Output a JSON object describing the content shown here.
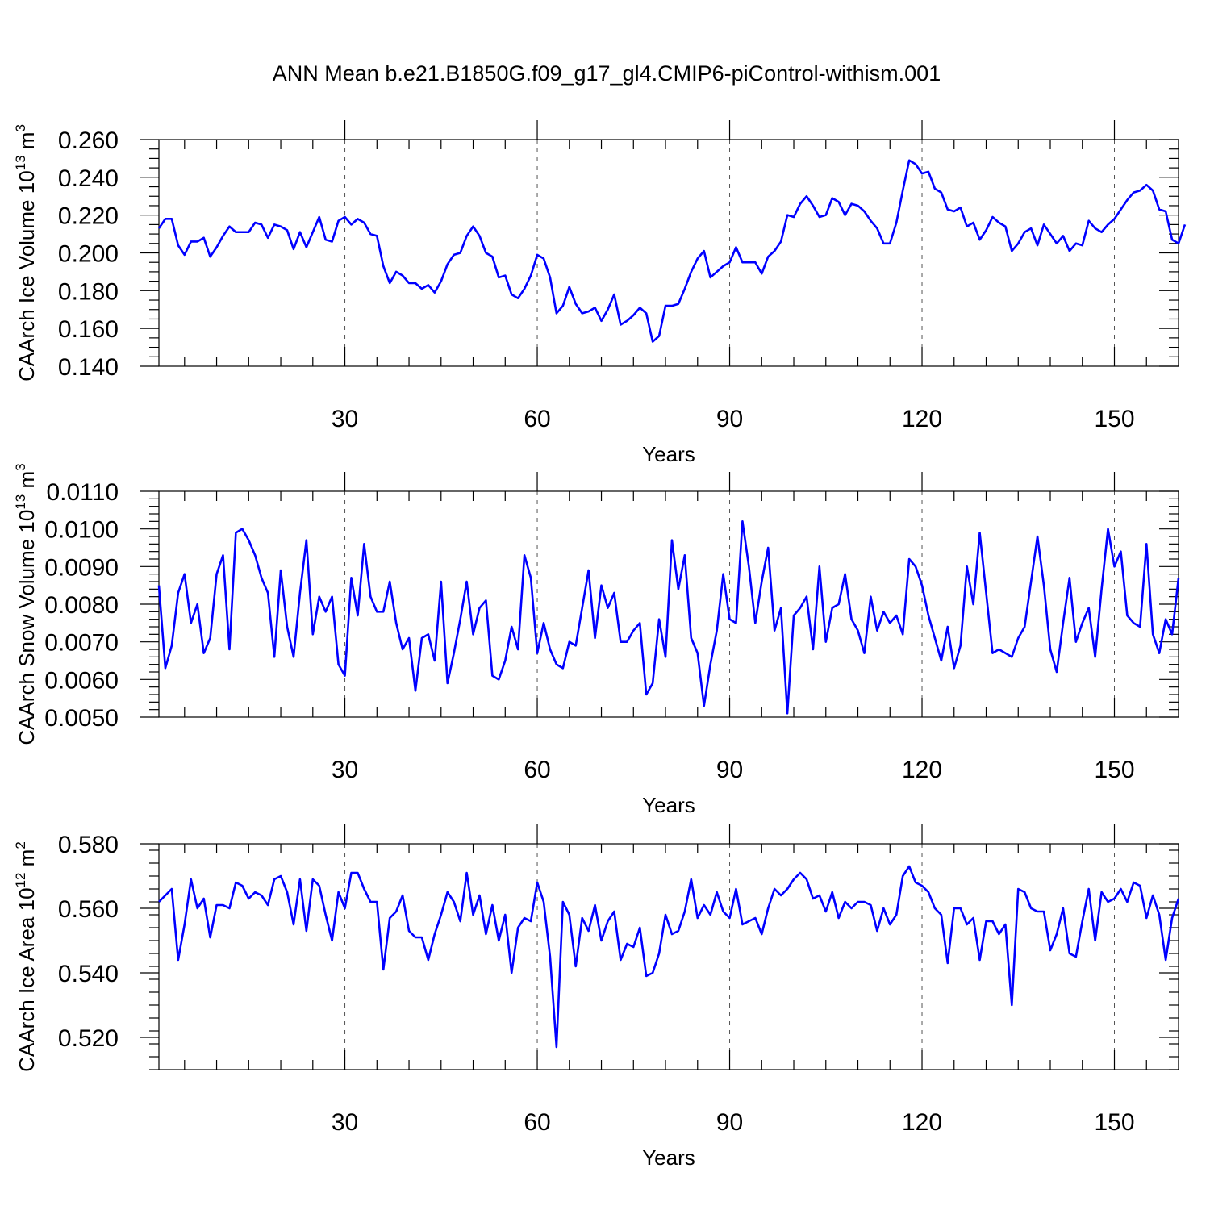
{
  "figure_title": "ANN Mean b.e21.B1850G.f09_g17_gl4.CMIP6-piControl-withism.001",
  "line_color": "#0000ff",
  "chart_data": [
    {
      "type": "line",
      "ylabel_main": "CAArch Ice Volume 10",
      "ylabel_exp": "13",
      "ylabel_unit": "m",
      "ylabel_unit_exp": "3",
      "xlabel": "Years",
      "xlim": [
        1,
        160
      ],
      "ylim": [
        0.14,
        0.26
      ],
      "x_ticks": [
        30,
        60,
        90,
        120,
        150
      ],
      "x_tick_labels": [
        "30",
        "60",
        "90",
        "120",
        "150"
      ],
      "y_ticks": [
        0.14,
        0.16,
        0.18,
        0.2,
        0.22,
        0.24,
        0.26
      ],
      "y_tick_labels": [
        "0.140",
        "0.160",
        "0.180",
        "0.200",
        "0.220",
        "0.240",
        "0.260"
      ],
      "y_minor_step": 0.005,
      "x_minor_step": 5,
      "grid": "dashed vertical at major x ticks",
      "series": [
        {
          "name": "CAArch Ice Volume",
          "values": [
            0.213,
            0.218,
            0.218,
            0.204,
            0.199,
            0.206,
            0.206,
            0.208,
            0.198,
            0.203,
            0.209,
            0.214,
            0.211,
            0.211,
            0.211,
            0.216,
            0.215,
            0.208,
            0.215,
            0.214,
            0.212,
            0.202,
            0.211,
            0.203,
            0.211,
            0.219,
            0.207,
            0.206,
            0.217,
            0.219,
            0.215,
            0.218,
            0.216,
            0.21,
            0.209,
            0.193,
            0.184,
            0.19,
            0.188,
            0.184,
            0.184,
            0.181,
            0.183,
            0.179,
            0.185,
            0.194,
            0.199,
            0.2,
            0.209,
            0.214,
            0.209,
            0.2,
            0.198,
            0.187,
            0.188,
            0.178,
            0.176,
            0.181,
            0.188,
            0.199,
            0.197,
            0.187,
            0.168,
            0.172,
            0.182,
            0.173,
            0.168,
            0.169,
            0.171,
            0.164,
            0.17,
            0.178,
            0.162,
            0.164,
            0.167,
            0.171,
            0.168,
            0.153,
            0.156,
            0.172,
            0.172,
            0.173,
            0.181,
            0.19,
            0.197,
            0.201,
            0.187,
            0.19,
            0.193,
            0.195,
            0.203,
            0.195,
            0.195,
            0.195,
            0.189,
            0.198,
            0.201,
            0.206,
            0.22,
            0.219,
            0.226,
            0.23,
            0.225,
            0.219,
            0.22,
            0.229,
            0.227,
            0.22,
            0.226,
            0.225,
            0.222,
            0.217,
            0.213,
            0.205,
            0.205,
            0.216,
            0.233,
            0.249,
            0.247,
            0.242,
            0.243,
            0.234,
            0.232,
            0.223,
            0.222,
            0.224,
            0.214,
            0.216,
            0.207,
            0.212,
            0.219,
            0.216,
            0.214,
            0.201,
            0.205,
            0.211,
            0.213,
            0.204,
            0.215,
            0.21,
            0.205,
            0.209,
            0.201,
            0.205,
            0.204,
            0.217,
            0.213,
            0.211,
            0.215,
            0.218,
            0.223,
            0.228,
            0.232,
            0.233,
            0.236,
            0.233,
            0.223,
            0.222,
            0.207,
            0.205,
            0.215
          ]
        }
      ]
    },
    {
      "type": "line",
      "ylabel_main": "CAArch Snow Volume 10",
      "ylabel_exp": "13",
      "ylabel_unit": "m",
      "ylabel_unit_exp": "3",
      "xlabel": "Years",
      "xlim": [
        1,
        160
      ],
      "ylim": [
        0.005,
        0.011
      ],
      "x_ticks": [
        30,
        60,
        90,
        120,
        150
      ],
      "x_tick_labels": [
        "30",
        "60",
        "90",
        "120",
        "150"
      ],
      "y_ticks": [
        0.005,
        0.006,
        0.007,
        0.008,
        0.009,
        0.01,
        0.011
      ],
      "y_tick_labels": [
        "0.0050",
        "0.0060",
        "0.0070",
        "0.0080",
        "0.0090",
        "0.0100",
        "0.0110"
      ],
      "y_minor_step": 0.0002,
      "x_minor_step": 5,
      "grid": "dashed vertical at major x ticks",
      "series": [
        {
          "name": "CAArch Snow Volume",
          "values": [
            0.0085,
            0.0063,
            0.0069,
            0.0083,
            0.0088,
            0.0075,
            0.008,
            0.0067,
            0.0071,
            0.0088,
            0.0093,
            0.0068,
            0.0099,
            0.01,
            0.0097,
            0.0093,
            0.0087,
            0.0083,
            0.0066,
            0.0089,
            0.0074,
            0.0066,
            0.0083,
            0.0097,
            0.0072,
            0.0082,
            0.0078,
            0.0082,
            0.0064,
            0.0061,
            0.0087,
            0.0077,
            0.0096,
            0.0082,
            0.0078,
            0.0078,
            0.0086,
            0.0075,
            0.0068,
            0.0071,
            0.0057,
            0.0071,
            0.0072,
            0.0065,
            0.0086,
            0.0059,
            0.0067,
            0.0076,
            0.0086,
            0.0072,
            0.0079,
            0.0081,
            0.0061,
            0.006,
            0.0065,
            0.0074,
            0.0068,
            0.0093,
            0.0087,
            0.0067,
            0.0075,
            0.0068,
            0.0064,
            0.0063,
            0.007,
            0.0069,
            0.0079,
            0.0089,
            0.0071,
            0.0085,
            0.0079,
            0.0083,
            0.007,
            0.007,
            0.0073,
            0.0075,
            0.0056,
            0.0059,
            0.0076,
            0.0066,
            0.0097,
            0.0084,
            0.0093,
            0.0071,
            0.0067,
            0.0053,
            0.0064,
            0.0073,
            0.0088,
            0.0076,
            0.0075,
            0.0102,
            0.009,
            0.0075,
            0.0086,
            0.0095,
            0.0073,
            0.0079,
            0.0051,
            0.0077,
            0.0079,
            0.0082,
            0.0068,
            0.009,
            0.007,
            0.0079,
            0.008,
            0.0088,
            0.0076,
            0.0073,
            0.0067,
            0.0082,
            0.0073,
            0.0078,
            0.0075,
            0.0077,
            0.0072,
            0.0092,
            0.009,
            0.0085,
            0.0077,
            0.0071,
            0.0065,
            0.0074,
            0.0063,
            0.0069,
            0.009,
            0.008,
            0.0099,
            0.0083,
            0.0067,
            0.0068,
            0.0067,
            0.0066,
            0.0071,
            0.0074,
            0.0086,
            0.0098,
            0.0085,
            0.0068,
            0.0062,
            0.0075,
            0.0087,
            0.007,
            0.0075,
            0.0079,
            0.0066,
            0.0084,
            0.01,
            0.009,
            0.0094,
            0.0077,
            0.0075,
            0.0074,
            0.0096,
            0.0072,
            0.0067,
            0.0076,
            0.0072,
            0.0087
          ]
        }
      ]
    },
    {
      "type": "line",
      "ylabel_main": "CAArch Ice Area 10",
      "ylabel_exp": "12",
      "ylabel_unit": "m",
      "ylabel_unit_exp": "2",
      "xlabel": "Years",
      "xlim": [
        1,
        160
      ],
      "ylim": [
        0.51,
        0.58
      ],
      "x_ticks": [
        30,
        60,
        90,
        120,
        150
      ],
      "x_tick_labels": [
        "30",
        "60",
        "90",
        "120",
        "150"
      ],
      "y_ticks": [
        0.52,
        0.54,
        0.56,
        0.58
      ],
      "y_tick_labels": [
        "0.520",
        "0.540",
        "0.560",
        "0.580"
      ],
      "y_minor_step": 0.004,
      "x_minor_step": 5,
      "grid": "dashed vertical at major x ticks",
      "series": [
        {
          "name": "CAArch Ice Area",
          "values": [
            0.562,
            0.564,
            0.566,
            0.544,
            0.555,
            0.569,
            0.56,
            0.563,
            0.551,
            0.561,
            0.561,
            0.56,
            0.568,
            0.567,
            0.563,
            0.565,
            0.564,
            0.561,
            0.569,
            0.57,
            0.565,
            0.555,
            0.569,
            0.553,
            0.569,
            0.567,
            0.558,
            0.55,
            0.565,
            0.56,
            0.571,
            0.571,
            0.566,
            0.562,
            0.562,
            0.541,
            0.557,
            0.559,
            0.564,
            0.553,
            0.551,
            0.551,
            0.544,
            0.552,
            0.558,
            0.565,
            0.562,
            0.556,
            0.571,
            0.558,
            0.564,
            0.552,
            0.561,
            0.55,
            0.558,
            0.54,
            0.554,
            0.557,
            0.556,
            0.568,
            0.562,
            0.545,
            0.517,
            0.562,
            0.558,
            0.542,
            0.557,
            0.553,
            0.561,
            0.55,
            0.556,
            0.559,
            0.544,
            0.549,
            0.548,
            0.554,
            0.539,
            0.54,
            0.546,
            0.558,
            0.552,
            0.553,
            0.559,
            0.569,
            0.557,
            0.561,
            0.558,
            0.565,
            0.559,
            0.557,
            0.566,
            0.555,
            0.556,
            0.557,
            0.552,
            0.56,
            0.566,
            0.564,
            0.566,
            0.569,
            0.571,
            0.569,
            0.563,
            0.564,
            0.559,
            0.565,
            0.557,
            0.562,
            0.56,
            0.562,
            0.562,
            0.561,
            0.553,
            0.56,
            0.555,
            0.558,
            0.57,
            0.573,
            0.568,
            0.567,
            0.565,
            0.56,
            0.558,
            0.543,
            0.56,
            0.56,
            0.555,
            0.557,
            0.544,
            0.556,
            0.556,
            0.552,
            0.555,
            0.53,
            0.566,
            0.565,
            0.56,
            0.559,
            0.559,
            0.547,
            0.552,
            0.56,
            0.546,
            0.545,
            0.556,
            0.566,
            0.55,
            0.565,
            0.562,
            0.563,
            0.566,
            0.562,
            0.568,
            0.567,
            0.557,
            0.564,
            0.558,
            0.544,
            0.557,
            0.563
          ]
        }
      ]
    }
  ]
}
